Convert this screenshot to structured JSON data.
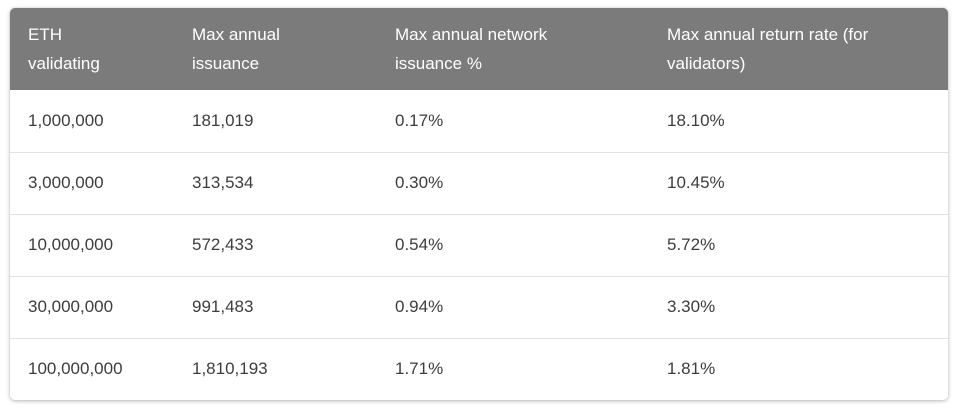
{
  "colors": {
    "page_bg": "#ffffff",
    "card_bg": "#ffffff",
    "header_bg": "#7b7b7b",
    "header_text": "#ffffff",
    "row_text": "#3d3d3d",
    "separator": "#e2e2e2"
  },
  "table": {
    "columns": [
      {
        "id": "eth-validating",
        "label": "ETH\nvalidating"
      },
      {
        "id": "max-annual-issuance",
        "label": "Max annual\nissuance"
      },
      {
        "id": "max-annual-network-issuance-pct",
        "label": "Max annual network\nissuance %"
      },
      {
        "id": "max-annual-return-rate",
        "label": "Max annual return rate (for\nvalidators)"
      }
    ],
    "rows": [
      [
        "1,000,000",
        "181,019",
        "0.17%",
        "18.10%"
      ],
      [
        "3,000,000",
        "313,534",
        "0.30%",
        "10.45%"
      ],
      [
        "10,000,000",
        "572,433",
        "0.54%",
        "5.72%"
      ],
      [
        "30,000,000",
        "991,483",
        "0.94%",
        "3.30%"
      ],
      [
        "100,000,000",
        "1,810,193",
        "1.71%",
        "1.81%"
      ]
    ]
  }
}
